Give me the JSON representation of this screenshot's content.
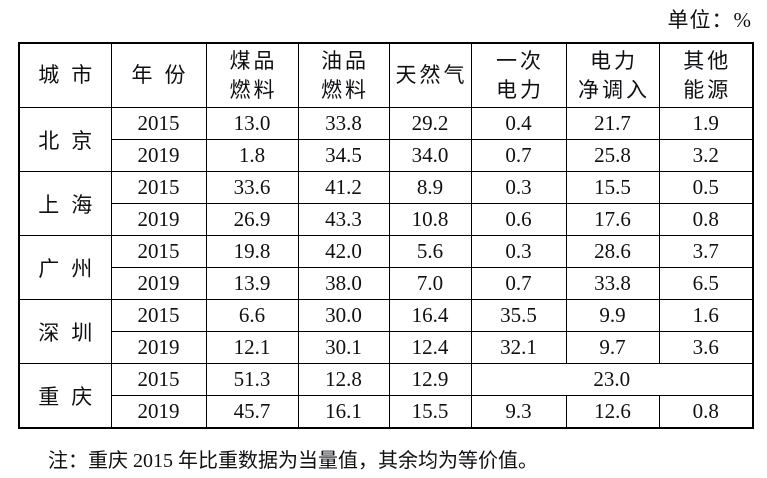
{
  "page": {
    "unit_label": "单位：%",
    "note": "注：重庆 2015 年比重数据为当量值，其余均为等价值。"
  },
  "table": {
    "headers": [
      {
        "name": "city",
        "lines": [
          "城市"
        ]
      },
      {
        "name": "year",
        "lines": [
          "年份"
        ]
      },
      {
        "name": "coal-fuel",
        "lines": [
          "煤品",
          "燃料"
        ]
      },
      {
        "name": "oil-fuel",
        "lines": [
          "油品",
          "燃料"
        ]
      },
      {
        "name": "natural-gas",
        "lines": [
          "天然气"
        ]
      },
      {
        "name": "primary-electricity",
        "lines": [
          "一次",
          "电力"
        ]
      },
      {
        "name": "net-electricity-inflow",
        "lines": [
          "电力",
          "净调入"
        ]
      },
      {
        "name": "other-energy",
        "lines": [
          "其他",
          "能源"
        ]
      }
    ],
    "groups": [
      {
        "city": "北京",
        "rows": [
          {
            "year": "2015",
            "values": [
              "13.0",
              "33.8",
              "29.2",
              "0.4",
              "21.7",
              "1.9"
            ]
          },
          {
            "year": "2019",
            "values": [
              "1.8",
              "34.5",
              "34.0",
              "0.7",
              "25.8",
              "3.2"
            ]
          }
        ]
      },
      {
        "city": "上海",
        "rows": [
          {
            "year": "2015",
            "values": [
              "33.6",
              "41.2",
              "8.9",
              "0.3",
              "15.5",
              "0.5"
            ]
          },
          {
            "year": "2019",
            "values": [
              "26.9",
              "43.3",
              "10.8",
              "0.6",
              "17.6",
              "0.8"
            ]
          }
        ]
      },
      {
        "city": "广州",
        "rows": [
          {
            "year": "2015",
            "values": [
              "19.8",
              "42.0",
              "5.6",
              "0.3",
              "28.6",
              "3.7"
            ]
          },
          {
            "year": "2019",
            "values": [
              "13.9",
              "38.0",
              "7.0",
              "0.7",
              "33.8",
              "6.5"
            ]
          }
        ]
      },
      {
        "city": "深圳",
        "rows": [
          {
            "year": "2015",
            "values": [
              "6.6",
              "30.0",
              "16.4",
              "35.5",
              "9.9",
              "1.6"
            ]
          },
          {
            "year": "2019",
            "values": [
              "12.1",
              "30.1",
              "12.4",
              "32.1",
              "9.7",
              "3.6"
            ]
          }
        ]
      },
      {
        "city": "重庆",
        "rows": [
          {
            "year": "2015",
            "values": [
              "51.3",
              "12.8",
              "12.9",
              {
                "text": "23.0",
                "colspan": 3
              }
            ]
          },
          {
            "year": "2019",
            "values": [
              "45.7",
              "16.1",
              "15.5",
              "9.3",
              "12.6",
              "0.8"
            ]
          }
        ]
      }
    ]
  },
  "chart_data": {
    "type": "table",
    "title": "单位：%",
    "columns": [
      "城市",
      "年份",
      "煤品燃料",
      "油品燃料",
      "天然气",
      "一次电力",
      "电力净调入",
      "其他能源"
    ],
    "rows": [
      [
        "北京",
        "2015",
        13.0,
        33.8,
        29.2,
        0.4,
        21.7,
        1.9
      ],
      [
        "北京",
        "2019",
        1.8,
        34.5,
        34.0,
        0.7,
        25.8,
        3.2
      ],
      [
        "上海",
        "2015",
        33.6,
        41.2,
        8.9,
        0.3,
        15.5,
        0.5
      ],
      [
        "上海",
        "2019",
        26.9,
        43.3,
        10.8,
        0.6,
        17.6,
        0.8
      ],
      [
        "广州",
        "2015",
        19.8,
        42.0,
        5.6,
        0.3,
        28.6,
        3.7
      ],
      [
        "广州",
        "2019",
        13.9,
        38.0,
        7.0,
        0.7,
        33.8,
        6.5
      ],
      [
        "深圳",
        "2015",
        6.6,
        30.0,
        16.4,
        35.5,
        9.9,
        1.6
      ],
      [
        "深圳",
        "2019",
        12.1,
        30.1,
        12.4,
        32.1,
        9.7,
        3.6
      ],
      [
        "重庆",
        "2015",
        51.3,
        12.8,
        12.9,
        "23.0 (合并：一次电力+电力净调入+其他能源)"
      ],
      [
        "重庆",
        "2019",
        45.7,
        16.1,
        15.5,
        9.3,
        12.6,
        0.8
      ]
    ],
    "annotations": [
      "注：重庆 2015 年比重数据为当量值，其余均为等价值。"
    ]
  }
}
